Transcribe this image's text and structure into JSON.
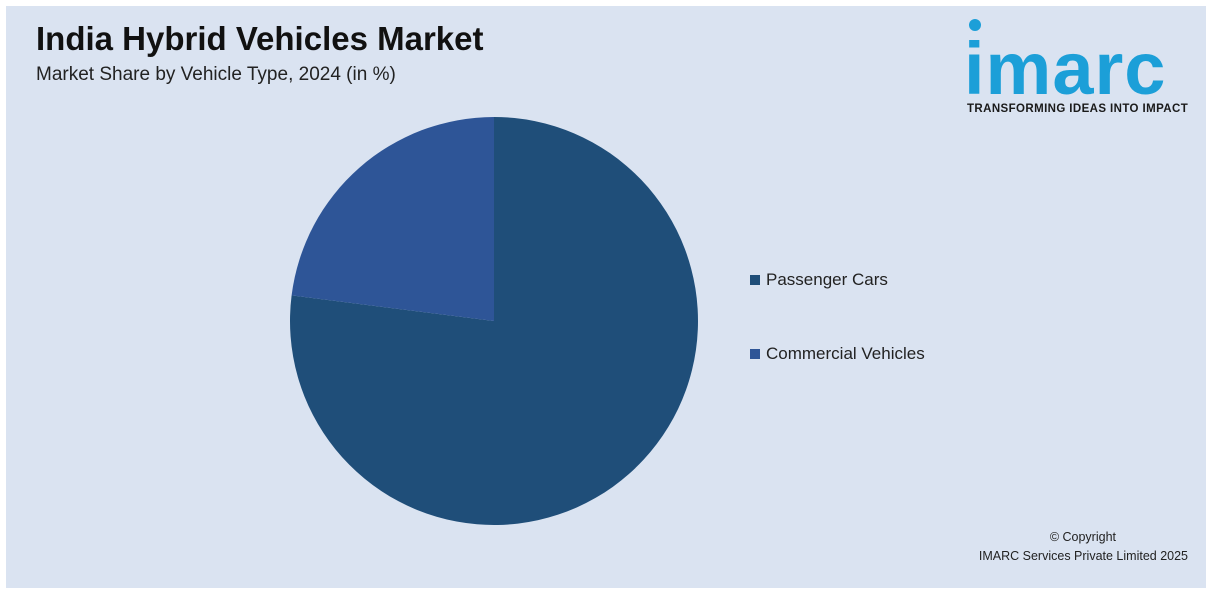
{
  "header": {
    "title": "India Hybrid Vehicles Market",
    "subtitle": "Market Share by Vehicle Type, 2024 (in %)"
  },
  "logo": {
    "wordmark": "imarc",
    "tagline": "TRANSFORMING IDEAS INTO IMPACT",
    "color": "#1c9fd8"
  },
  "chart_data": {
    "type": "pie",
    "title": "India Hybrid Vehicles Market",
    "subtitle": "Market Share by Vehicle Type, 2024 (in %)",
    "categories": [
      "Passenger Cars",
      "Commercial Vehicles"
    ],
    "values": [
      77,
      23
    ],
    "colors": [
      "#1f4e79",
      "#2e5597"
    ],
    "start_angle_deg": 0,
    "direction": "clockwise",
    "data_labels": false,
    "legend": {
      "position": "right",
      "items": [
        {
          "label": "Passenger Cars",
          "color": "#1f4e79"
        },
        {
          "label": "Commercial Vehicles",
          "color": "#2e5597"
        }
      ]
    }
  },
  "footer": {
    "copyright_line1": "© Copyright",
    "copyright_line2": "IMARC Services Private Limited 2025"
  }
}
